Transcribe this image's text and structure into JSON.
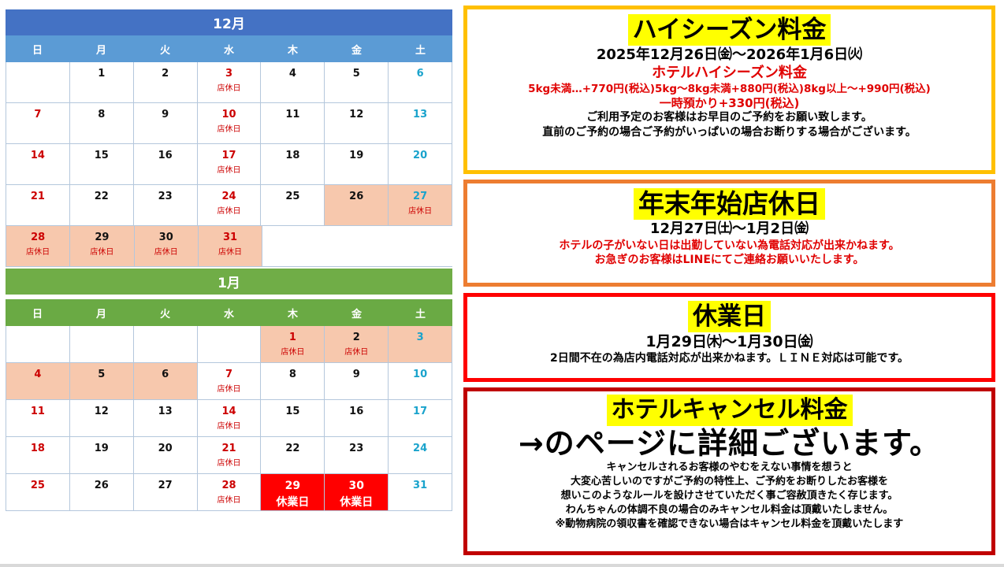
{
  "december": {
    "title": "12月",
    "weekdays": [
      "日",
      "月",
      "火",
      "水",
      "木",
      "金",
      "土"
    ],
    "weeks": [
      [
        {
          "n": ""
        },
        {
          "n": "1"
        },
        {
          "n": "2"
        },
        {
          "n": "3",
          "c": "red",
          "l": "店休日"
        },
        {
          "n": "4"
        },
        {
          "n": "5"
        },
        {
          "n": "6",
          "c": "blue"
        }
      ],
      [
        {
          "n": "7",
          "c": "red"
        },
        {
          "n": "8"
        },
        {
          "n": "9"
        },
        {
          "n": "10",
          "c": "red",
          "l": "店休日"
        },
        {
          "n": "11"
        },
        {
          "n": "12"
        },
        {
          "n": "13",
          "c": "blue"
        }
      ],
      [
        {
          "n": "14",
          "c": "red"
        },
        {
          "n": "15"
        },
        {
          "n": "16"
        },
        {
          "n": "17",
          "c": "red",
          "l": "店休日"
        },
        {
          "n": "18"
        },
        {
          "n": "19"
        },
        {
          "n": "20",
          "c": "blue"
        }
      ],
      [
        {
          "n": "21",
          "c": "red"
        },
        {
          "n": "22"
        },
        {
          "n": "23"
        },
        {
          "n": "24",
          "c": "red",
          "l": "店休日"
        },
        {
          "n": "25"
        },
        {
          "n": "26",
          "bg": "pink"
        },
        {
          "n": "27",
          "c": "blue",
          "l": "店休日",
          "bg": "pink"
        }
      ],
      [
        {
          "n": "28",
          "c": "red",
          "l": "店休日",
          "bg": "pink"
        },
        {
          "n": "29",
          "l": "店休日",
          "bg": "pink"
        },
        {
          "n": "30",
          "l": "店休日",
          "bg": "pink"
        },
        {
          "n": "31",
          "c": "red",
          "l": "店休日",
          "bg": "pink"
        },
        {
          "n": "",
          "blank": true
        },
        {
          "n": "",
          "blank": true
        },
        {
          "n": "",
          "blank": true
        }
      ]
    ]
  },
  "january": {
    "title": "1月",
    "weekdays": [
      "日",
      "月",
      "火",
      "水",
      "木",
      "金",
      "土"
    ],
    "weeks": [
      [
        {
          "n": ""
        },
        {
          "n": ""
        },
        {
          "n": ""
        },
        {
          "n": ""
        },
        {
          "n": "1",
          "c": "red",
          "l": "店休日",
          "bg": "pink"
        },
        {
          "n": "2",
          "l": "店休日",
          "bg": "pink"
        },
        {
          "n": "3",
          "c": "blue",
          "bg": "pink"
        }
      ],
      [
        {
          "n": "4",
          "c": "red",
          "bg": "pink"
        },
        {
          "n": "5",
          "bg": "pink"
        },
        {
          "n": "6",
          "bg": "pink"
        },
        {
          "n": "7",
          "c": "red",
          "l": "店休日"
        },
        {
          "n": "8"
        },
        {
          "n": "9"
        },
        {
          "n": "10",
          "c": "blue"
        }
      ],
      [
        {
          "n": "11",
          "c": "red"
        },
        {
          "n": "12"
        },
        {
          "n": "13"
        },
        {
          "n": "14",
          "c": "red",
          "l": "店休日"
        },
        {
          "n": "15"
        },
        {
          "n": "16"
        },
        {
          "n": "17",
          "c": "blue"
        }
      ],
      [
        {
          "n": "18",
          "c": "red"
        },
        {
          "n": "19"
        },
        {
          "n": "20"
        },
        {
          "n": "21",
          "c": "red",
          "l": "店休日"
        },
        {
          "n": "22"
        },
        {
          "n": "23"
        },
        {
          "n": "24",
          "c": "blue"
        }
      ],
      [
        {
          "n": "25",
          "c": "red"
        },
        {
          "n": "26"
        },
        {
          "n": "27"
        },
        {
          "n": "28",
          "c": "red",
          "l": "店休日"
        },
        {
          "n": "29",
          "l": "休業日",
          "bg": "red"
        },
        {
          "n": "30",
          "l": "休業日",
          "bg": "red"
        },
        {
          "n": "31",
          "c": "blue"
        }
      ]
    ]
  },
  "high_season": {
    "title": "ハイシーズン料金",
    "period": "2025年12月26日㈮～2026年1月6日㈫",
    "subtitle": "ホテルハイシーズン料金",
    "prices": "5kg未満…+770円(税込)5kg～8kg未満+880円(税込)8kg以上～+990円(税込)",
    "temp_care": "一時預かり+330円(税込)",
    "note1": "ご利用予定のお客様はお早目のご予約をお願い致します。",
    "note2": "直前のご予約の場合ご予約がいっぱいの場合お断りする場合がございます。"
  },
  "year_end": {
    "title": "年末年始店休日",
    "period": "12月27日㈯～1月2日㈮",
    "note1": "ホテルの子がいない日は出勤していない為電話対応が出来かねます。",
    "note2": "お急ぎのお客様はLINEにてご連絡お願いいたします。"
  },
  "closed": {
    "title": "休業日",
    "period": "1月29日㈭～1月30日㈮",
    "note": "2日間不在の為店内電話対応が出来かねます。ＬＩＮＥ対応は可能です。"
  },
  "cancel": {
    "title": "ホテルキャンセル料金",
    "arrow_text": "→のページに詳細ございます。",
    "lines": [
      "キャンセルされるお客様のやむをえない事情を想うと",
      "大変心苦しいのですがご予約の特性上、ご予約をお断りしたお客様を",
      "想いこのようなルールを設けさせていただく事ご容赦頂きたく存じます。",
      "わんちゃんの体調不良の場合のみキャンセル料金は頂戴いたしません。",
      "※動物病院の領収書を確認できない場合はキャンセル料金を頂戴いたします"
    ]
  }
}
